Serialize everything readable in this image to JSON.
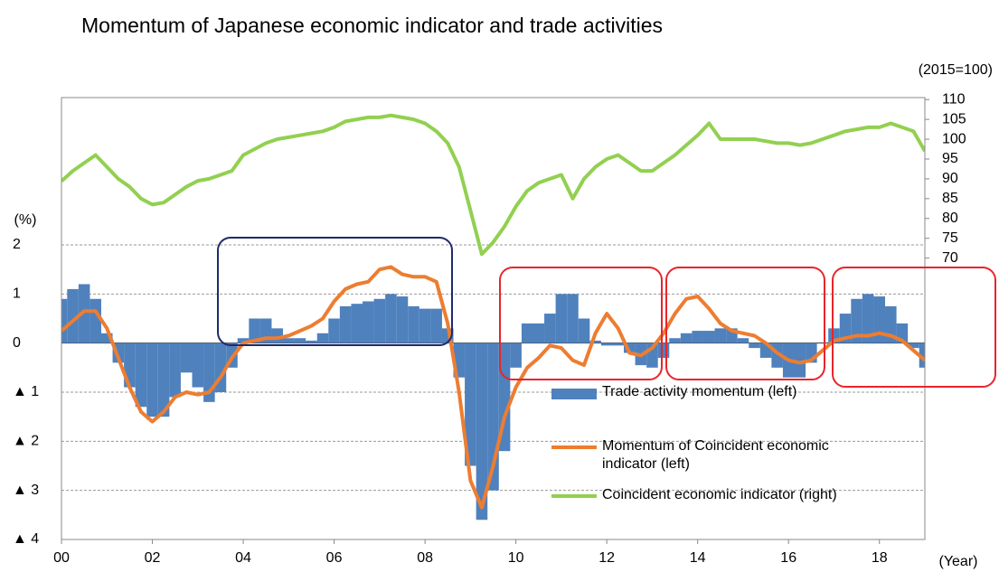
{
  "chart_data": {
    "type": "combo",
    "title": "Momentum of Japanese economic indicator and trade activities",
    "y_label": "(%)",
    "y2_label": "(2015=100)",
    "x_label": "(Year)",
    "x": [
      2000,
      2000.25,
      2000.5,
      2000.75,
      2001,
      2001.25,
      2001.5,
      2001.75,
      2002,
      2002.25,
      2002.5,
      2002.75,
      2003,
      2003.25,
      2003.5,
      2003.75,
      2004,
      2004.25,
      2004.5,
      2004.75,
      2005,
      2005.25,
      2005.5,
      2005.75,
      2006,
      2006.25,
      2006.5,
      2006.75,
      2007,
      2007.25,
      2007.5,
      2007.75,
      2008,
      2008.25,
      2008.5,
      2008.75,
      2009,
      2009.25,
      2009.5,
      2009.75,
      2010,
      2010.25,
      2010.5,
      2010.75,
      2011,
      2011.25,
      2011.5,
      2011.75,
      2012,
      2012.25,
      2012.5,
      2012.75,
      2013,
      2013.25,
      2013.5,
      2013.75,
      2014,
      2014.25,
      2014.5,
      2014.75,
      2015,
      2015.25,
      2015.5,
      2015.75,
      2016,
      2016.25,
      2016.5,
      2016.75,
      2017,
      2017.25,
      2017.5,
      2017.75,
      2018,
      2018.25,
      2018.5,
      2018.75,
      2019
    ],
    "series": [
      {
        "name": "Trade activity momentum (left)",
        "kind": "bar",
        "color": "#4f81bd",
        "values": [
          0.9,
          1.1,
          1.2,
          0.9,
          0.2,
          -0.4,
          -0.9,
          -1.3,
          -1.5,
          -1.5,
          -1.1,
          -0.6,
          -0.9,
          -1.2,
          -1.0,
          -0.5,
          0.1,
          0.5,
          0.5,
          0.3,
          0.1,
          0.1,
          0.05,
          0.2,
          0.5,
          0.75,
          0.8,
          0.85,
          0.9,
          1.0,
          0.95,
          0.75,
          0.7,
          0.7,
          0.3,
          -0.7,
          -2.5,
          -3.6,
          -3.0,
          -2.2,
          -0.5,
          0.4,
          0.4,
          0.6,
          1.0,
          1.0,
          0.5,
          0.05,
          -0.05,
          -0.05,
          -0.2,
          -0.45,
          -0.5,
          -0.3,
          0.1,
          0.2,
          0.25,
          0.25,
          0.3,
          0.3,
          0.1,
          -0.1,
          -0.3,
          -0.5,
          -0.7,
          -0.7,
          -0.4,
          0.0,
          0.3,
          0.6,
          0.9,
          1.0,
          0.95,
          0.75,
          0.4,
          -0.1,
          -0.5
        ]
      },
      {
        "name": "Momentum of Coincident economic indicator (left)",
        "kind": "line",
        "color": "#ed7d31",
        "values": [
          0.25,
          0.45,
          0.65,
          0.65,
          0.3,
          -0.3,
          -0.9,
          -1.4,
          -1.6,
          -1.4,
          -1.1,
          -1.0,
          -1.05,
          -1.0,
          -0.7,
          -0.3,
          0.0,
          0.05,
          0.1,
          0.1,
          0.15,
          0.25,
          0.35,
          0.5,
          0.85,
          1.1,
          1.2,
          1.25,
          1.5,
          1.55,
          1.4,
          1.35,
          1.35,
          1.25,
          0.4,
          -1.0,
          -2.8,
          -3.35,
          -2.5,
          -1.5,
          -0.9,
          -0.5,
          -0.3,
          -0.05,
          -0.1,
          -0.35,
          -0.45,
          0.2,
          0.6,
          0.3,
          -0.2,
          -0.25,
          -0.1,
          0.2,
          0.6,
          0.9,
          0.95,
          0.7,
          0.4,
          0.25,
          0.2,
          0.15,
          0.0,
          -0.2,
          -0.35,
          -0.4,
          -0.35,
          -0.15,
          0.05,
          0.1,
          0.15,
          0.15,
          0.2,
          0.15,
          0.05,
          -0.15,
          -0.35
        ]
      },
      {
        "name": "Coincident economic indicator (right)",
        "kind": "line",
        "axis": "y2",
        "color": "#92d050",
        "values": [
          89.4,
          92,
          94,
          96,
          93,
          90,
          88,
          85,
          83.5,
          84,
          86,
          88,
          89.5,
          90,
          91,
          92,
          96,
          97.5,
          99,
          100,
          100.5,
          101,
          101.5,
          102,
          103,
          104.5,
          105,
          105.5,
          105.5,
          106,
          105.5,
          105,
          104,
          102,
          99,
          93,
          82,
          71,
          74,
          78,
          83,
          87,
          89,
          90,
          91,
          85,
          90,
          93,
          95,
          96,
          94,
          92,
          92,
          94,
          96,
          98.5,
          101,
          104,
          100,
          100,
          100,
          100,
          99.5,
          99,
          99,
          98.5,
          99,
          100,
          101,
          102,
          102.5,
          103,
          103,
          104,
          103,
          102,
          97
        ]
      }
    ],
    "xlim": [
      2000,
      2019
    ],
    "xticks": [
      {
        "value": 2000,
        "label": "00"
      },
      {
        "value": 2002,
        "label": "02"
      },
      {
        "value": 2004,
        "label": "04"
      },
      {
        "value": 2006,
        "label": "06"
      },
      {
        "value": 2008,
        "label": "08"
      },
      {
        "value": 2010,
        "label": "10"
      },
      {
        "value": 2012,
        "label": "12"
      },
      {
        "value": 2014,
        "label": "14"
      },
      {
        "value": 2016,
        "label": "16"
      },
      {
        "value": 2018,
        "label": "18"
      }
    ],
    "ylim": [
      -4,
      5
    ],
    "yticks": [
      {
        "value": -4,
        "label": "▲ 4"
      },
      {
        "value": -3,
        "label": "▲ 3"
      },
      {
        "value": -2,
        "label": "▲ 2"
      },
      {
        "value": -1,
        "label": "▲ 1"
      },
      0,
      1,
      2
    ],
    "y2lim": [
      -1,
      110.5
    ],
    "y2ticks": [
      70,
      75,
      80,
      85,
      90,
      95,
      100,
      105,
      110
    ],
    "grid": true
  }
}
